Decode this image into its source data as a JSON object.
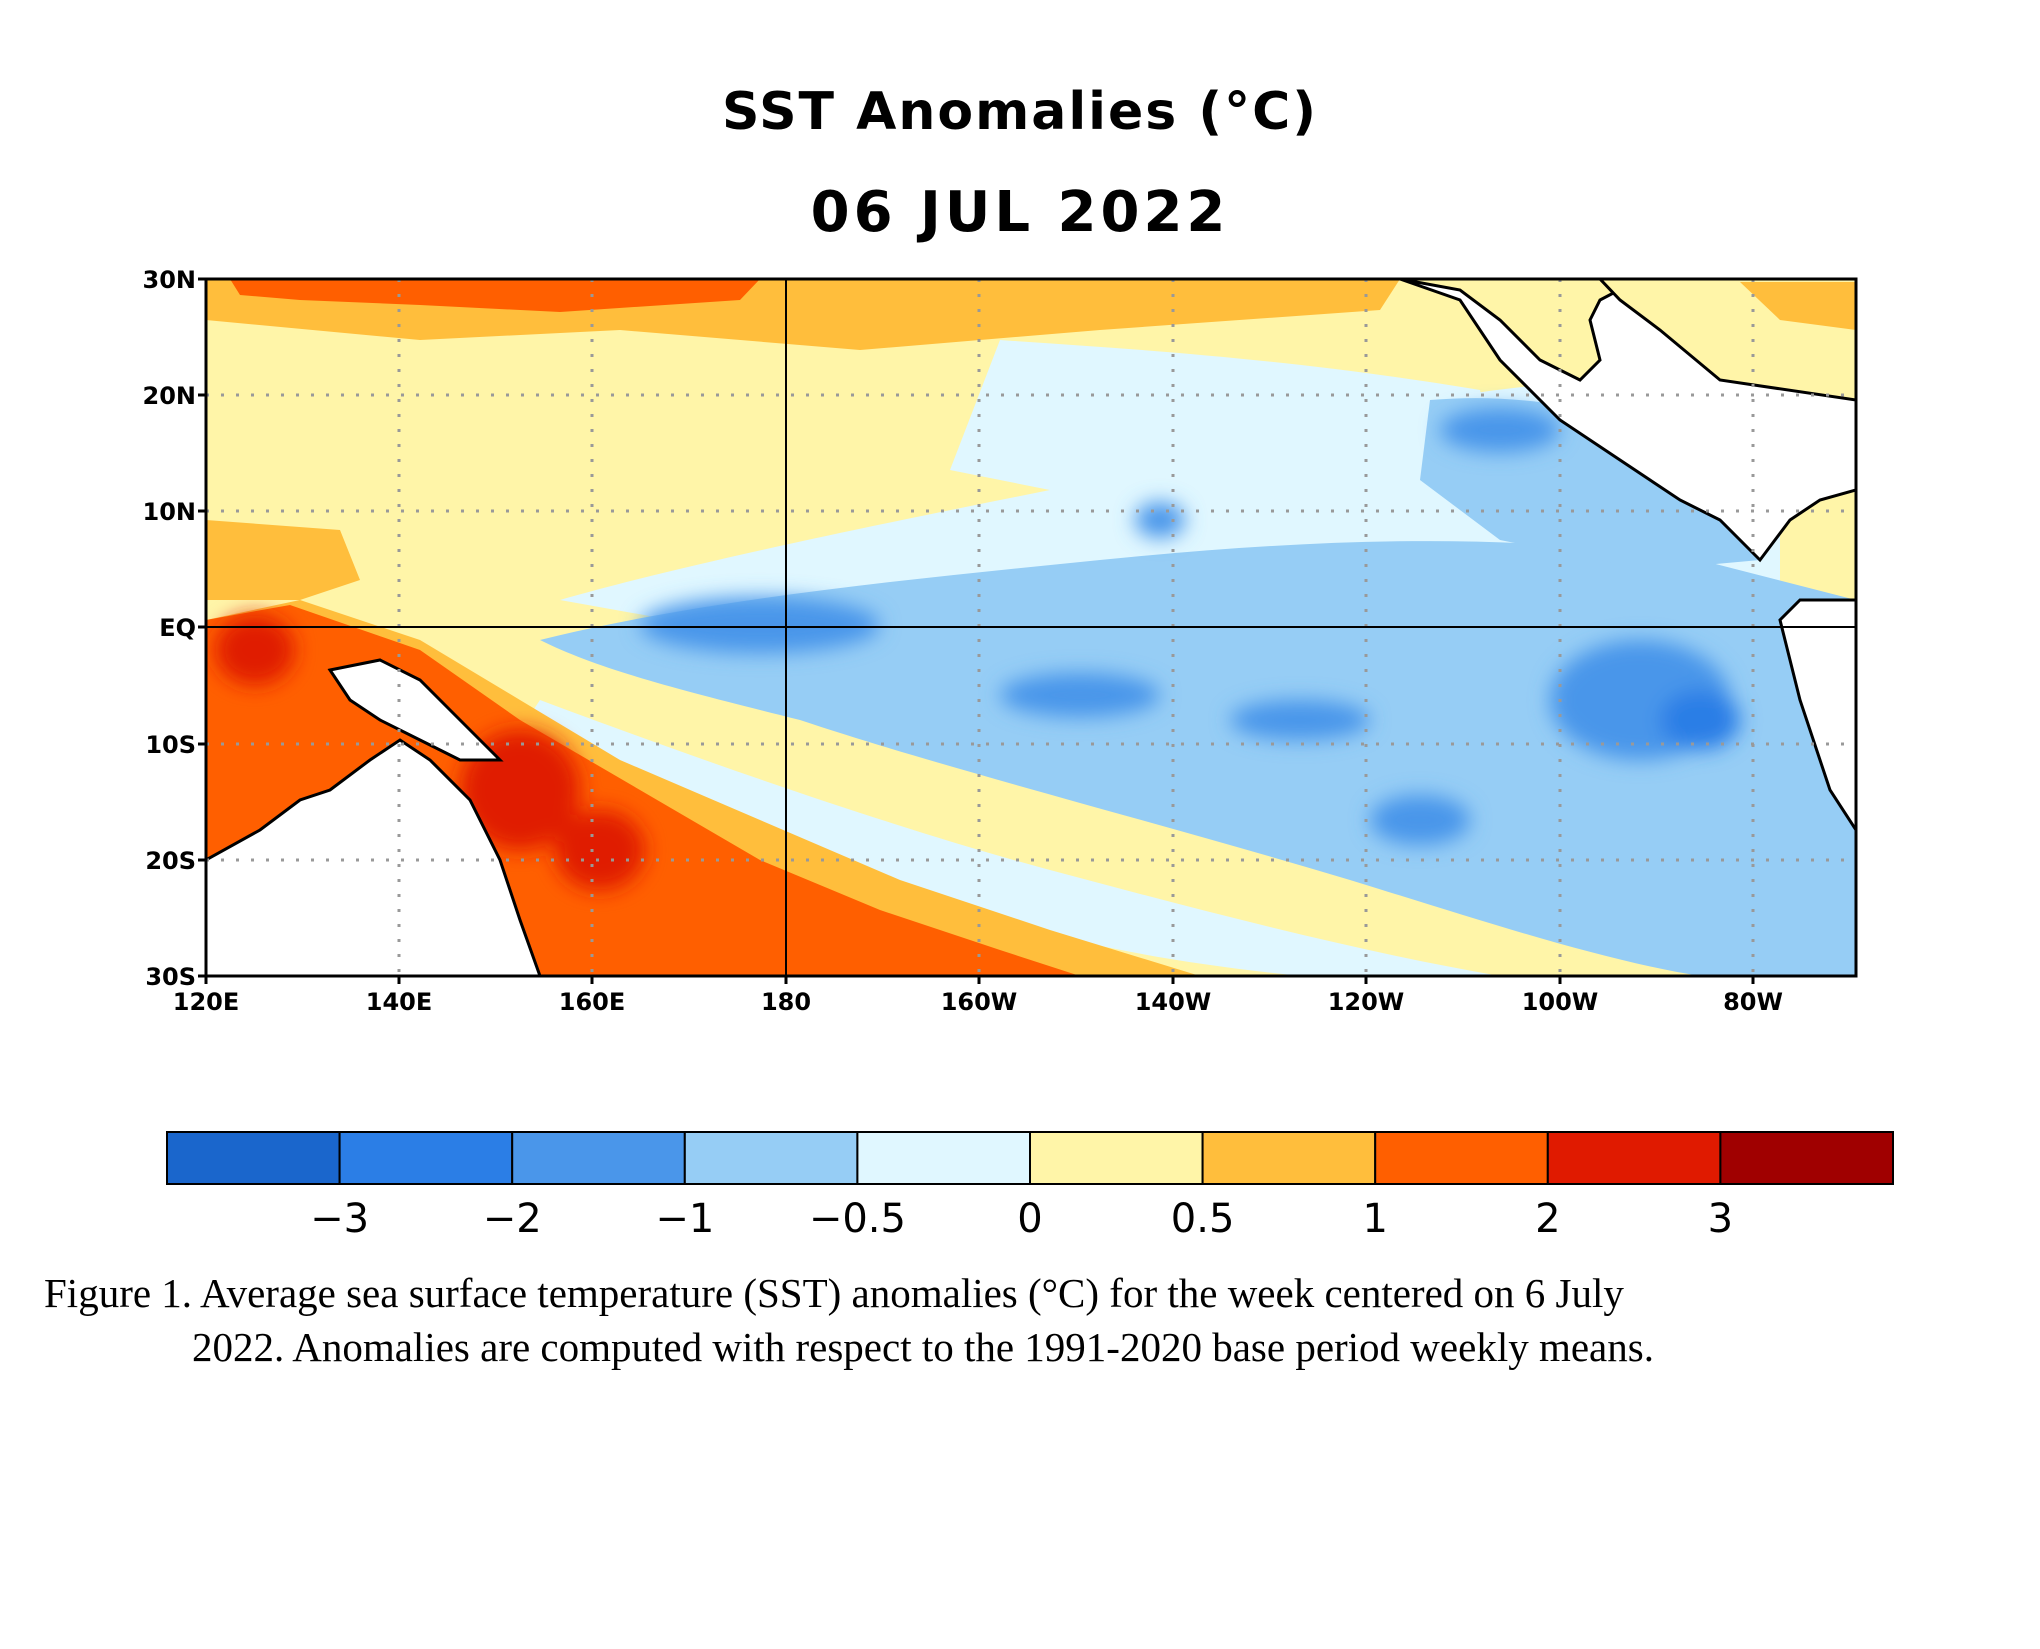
{
  "title": "SST Anomalies (°C)",
  "date": "06 JUL 2022",
  "lat_labels": [
    "30N",
    "20N",
    "10N",
    "EQ",
    "10S",
    "20S",
    "30S"
  ],
  "lon_labels": [
    "120E",
    "140E",
    "160E",
    "180",
    "160W",
    "140W",
    "120W",
    "100W",
    "80W"
  ],
  "colorbar": {
    "colors": [
      "#1a66cc",
      "#2b7ee6",
      "#4a96ea",
      "#96cdf5",
      "#e0f7ff",
      "#fff5a8",
      "#ffbe3c",
      "#ff5f00",
      "#e01a00",
      "#a00000"
    ],
    "labels": [
      "−3",
      "−2",
      "−1",
      "−0.5",
      "0",
      "0.5",
      "1",
      "2",
      "3"
    ],
    "unit": "°C"
  },
  "caption_line1": "Figure 1. Average sea surface temperature (SST) anomalies (°C) for the week centered on 6 July",
  "caption_line2": "2022.  Anomalies are computed with respect to the 1991-2020 base period weekly means."
}
